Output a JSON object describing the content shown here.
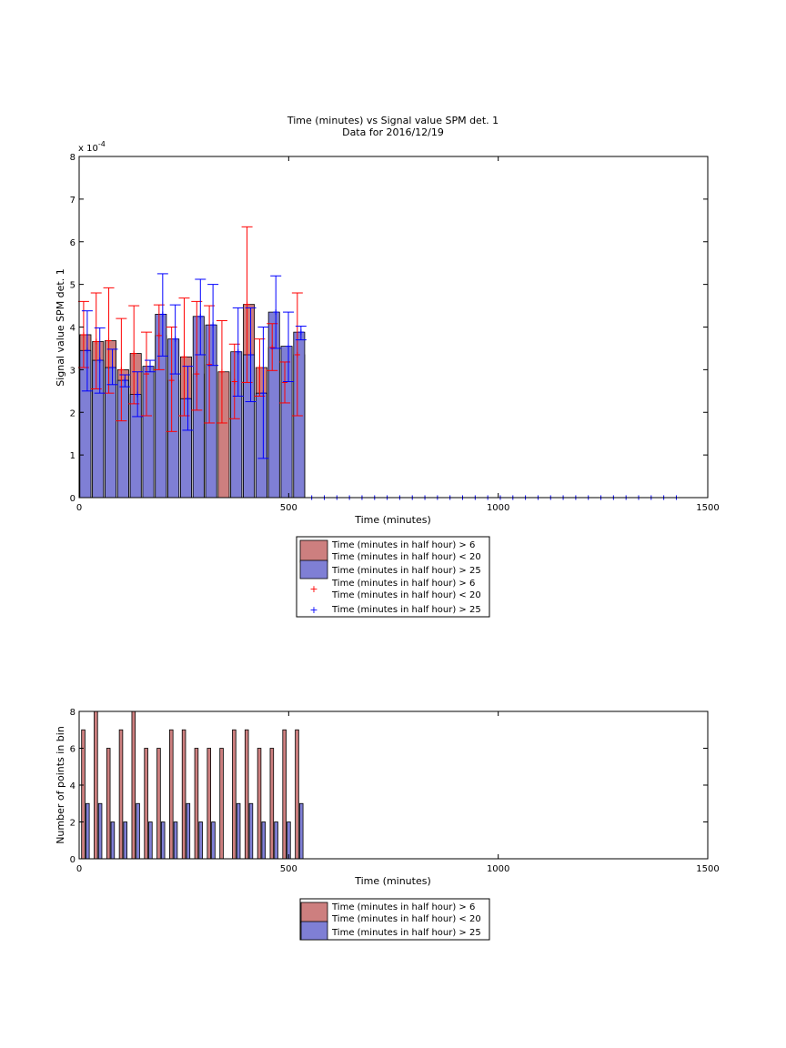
{
  "chart_data": [
    {
      "type": "bar",
      "title": "Time (minutes) vs Signal value SPM det. 1",
      "subtitle": "Data for 2016/12/19",
      "xlabel": "Time (minutes)",
      "ylabel": "Signal value SPM det. 1",
      "y_exponent_label": "x 10",
      "y_exponent_power": "-4",
      "xlim": [
        0,
        1500
      ],
      "ylim": [
        0,
        8
      ],
      "xticks": [
        "0",
        "500",
        "1000",
        "1500"
      ],
      "yticks": [
        "0",
        "1",
        "2",
        "3",
        "4",
        "5",
        "6",
        "7",
        "8"
      ],
      "bin_width": 30,
      "x": [
        15,
        45,
        75,
        105,
        135,
        165,
        195,
        225,
        255,
        285,
        315,
        345,
        375,
        405,
        435,
        465,
        495,
        525
      ],
      "series": [
        {
          "name": "Time (minutes in half hour) > 6\nTime (minutes in half hour) < 20",
          "color": "#cd7f7f",
          "errorbar_color": "#ff0000",
          "values": [
            3.82,
            3.66,
            3.68,
            3.0,
            3.38,
            2.9,
            3.8,
            2.75,
            3.3,
            2.9,
            3.12,
            2.95,
            2.72,
            4.53,
            3.05,
            3.52,
            2.7,
            3.35
          ],
          "err_low": [
            3.05,
            2.55,
            2.45,
            1.8,
            2.2,
            1.92,
            3.0,
            1.55,
            1.92,
            2.05,
            1.75,
            1.75,
            1.85,
            2.7,
            2.38,
            2.98,
            2.22,
            1.92
          ],
          "err_high": [
            4.6,
            4.8,
            4.92,
            4.2,
            4.5,
            3.88,
            4.52,
            4.0,
            4.68,
            4.6,
            4.5,
            4.15,
            3.6,
            6.35,
            3.72,
            4.08,
            3.18,
            4.8
          ]
        },
        {
          "name": "Time (minutes in half hour) > 25",
          "color": "#7f7fd5",
          "errorbar_color": "#0000ff",
          "values": [
            3.45,
            3.22,
            3.05,
            2.75,
            2.42,
            3.08,
            4.3,
            3.72,
            2.32,
            4.25,
            4.05,
            null,
            3.42,
            3.35,
            2.45,
            4.35,
            3.55,
            3.88
          ],
          "err_low": [
            2.5,
            2.45,
            2.65,
            2.6,
            1.9,
            2.95,
            3.32,
            2.9,
            1.58,
            3.35,
            3.1,
            null,
            2.38,
            2.25,
            0.92,
            3.5,
            2.72,
            3.7
          ],
          "err_high": [
            4.38,
            3.98,
            3.48,
            2.88,
            2.95,
            3.22,
            5.25,
            4.52,
            3.08,
            5.12,
            5.0,
            null,
            4.45,
            4.45,
            4.0,
            5.2,
            4.35,
            4.02
          ]
        }
      ],
      "empty_bin_markers_x": [
        555,
        585,
        615,
        645,
        675,
        705,
        735,
        765,
        795,
        825,
        855,
        885,
        915,
        945,
        975,
        1005,
        1035,
        1065,
        1095,
        1125,
        1155,
        1185,
        1215,
        1245,
        1275,
        1305,
        1335,
        1365,
        1395,
        1425
      ],
      "legend": {
        "placement": "below",
        "entries": [
          {
            "label": "Time (minutes in half hour) > 6\nTime (minutes in half hour) < 20",
            "kind": "patch",
            "color": "#cd7f7f"
          },
          {
            "label": "Time (minutes in half hour) > 25",
            "kind": "patch",
            "color": "#7f7fd5"
          },
          {
            "label": "Time (minutes in half hour) > 6\nTime (minutes in half hour) < 20",
            "kind": "marker",
            "color": "#ff0000"
          },
          {
            "label": "Time (minutes in half hour) > 25",
            "kind": "marker",
            "color": "#0000ff"
          }
        ]
      }
    },
    {
      "type": "bar",
      "xlabel": "Time (minutes)",
      "ylabel": "Number of points in bin",
      "xlim": [
        0,
        1500
      ],
      "ylim": [
        0,
        8
      ],
      "xticks": [
        "0",
        "500",
        "1000",
        "1500"
      ],
      "yticks": [
        "0",
        "2",
        "4",
        "6",
        "8"
      ],
      "x": [
        15,
        45,
        75,
        105,
        135,
        165,
        195,
        225,
        255,
        285,
        315,
        345,
        375,
        405,
        435,
        465,
        495,
        525
      ],
      "series": [
        {
          "name": "Time (minutes in half hour) > 6\nTime (minutes in half hour) < 20",
          "color": "#cd7f7f",
          "values": [
            7,
            8,
            6,
            7,
            8,
            6,
            6,
            7,
            7,
            6,
            6,
            6,
            7,
            7,
            6,
            6,
            7,
            7
          ]
        },
        {
          "name": "Time (minutes in half hour) > 25",
          "color": "#7f7fd5",
          "values": [
            3,
            3,
            2,
            2,
            3,
            2,
            2,
            2,
            3,
            2,
            2,
            0,
            3,
            3,
            2,
            2,
            2,
            3
          ]
        }
      ],
      "legend": {
        "placement": "below",
        "entries": [
          {
            "label": "Time (minutes in half hour) > 6\nTime (minutes in half hour) < 20",
            "kind": "patch",
            "color": "#cd7f7f"
          },
          {
            "label": "Time (minutes in half hour) > 25",
            "kind": "patch",
            "color": "#7f7fd5"
          }
        ]
      }
    }
  ]
}
